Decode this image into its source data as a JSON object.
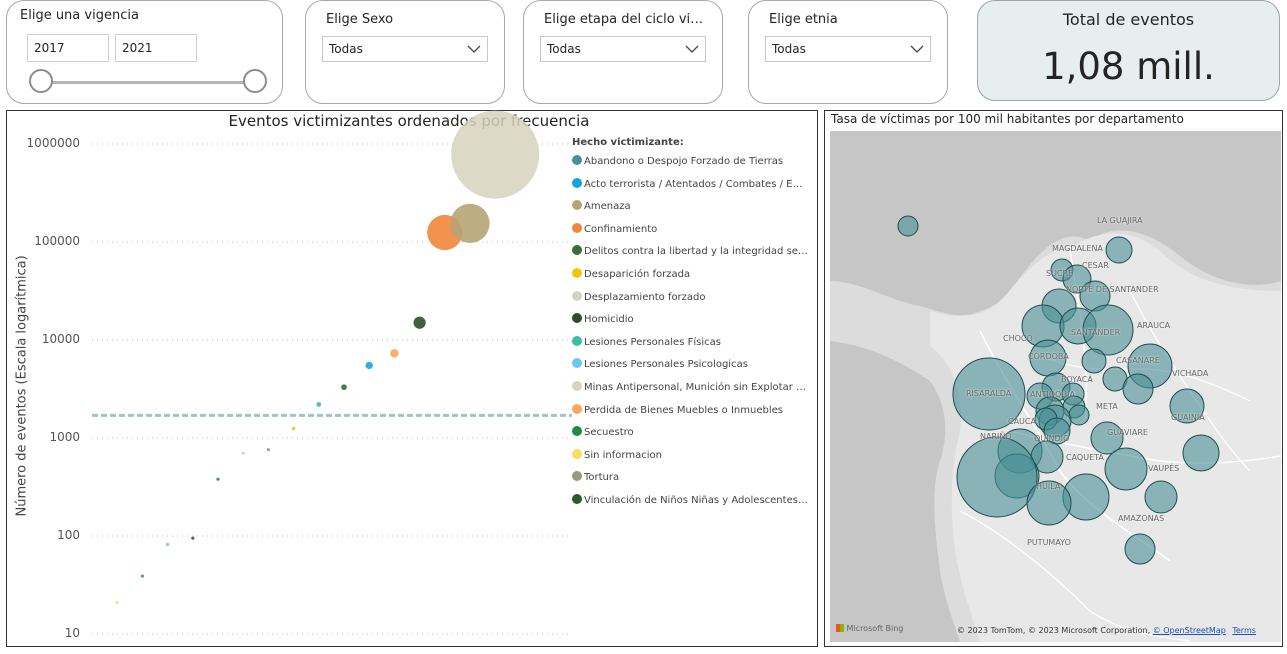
{
  "slicers": {
    "vigencia": {
      "title": "Elige una vigencia",
      "from": "2017",
      "to": "2021"
    },
    "sexo": {
      "title": "Elige Sexo",
      "value": "Todas"
    },
    "etapa": {
      "title": "Elige etapa del ciclo vi…",
      "value": "Todas"
    },
    "etnia": {
      "title": "Elige etnia",
      "value": "Todas"
    }
  },
  "kpi": {
    "title": "Total de eventos",
    "value": "1,08 mill."
  },
  "scatter": {
    "title": "Eventos victimizantes ordenados por frecuencia",
    "ylabel": "Número de eventos (Escala logarítmica)",
    "legend_title": "Hecho victimizante:",
    "yticks": [
      "1000000",
      "100000",
      "10000",
      "1000",
      "100",
      "10"
    ]
  },
  "chart_data": {
    "type": "scatter",
    "title": "Eventos victimizantes ordenados por frecuencia",
    "ylabel": "Número de eventos (Escala logarítmica)",
    "yscale": "log",
    "ylim": [
      10,
      1000000
    ],
    "legend_placement": "right",
    "reference_line": 1700,
    "series": [
      {
        "name": "Abandono o Despojo Forzado de Tierras",
        "color": "#4a8f94",
        "rank": 3,
        "value": 39
      },
      {
        "name": "Acto terrorista / Atentados / Combates / Enfr…",
        "color": "#12a6e0",
        "rank": 12,
        "value": 5500
      },
      {
        "name": "Amenaza",
        "color": "#b6a474",
        "rank": 16,
        "value": 155000
      },
      {
        "name": "Confinamiento",
        "color": "#f0873c",
        "rank": 15,
        "value": 125000
      },
      {
        "name": "Delitos contra la libertad y la integridad sexu…",
        "color": "#3a6e3a",
        "rank": 11,
        "value": 3300
      },
      {
        "name": "Desaparición forzada",
        "color": "#f2c40f",
        "rank": 9,
        "value": 1250
      },
      {
        "name": "Desplazamiento forzado",
        "color": "#d6d3bd",
        "rank": 17,
        "value": 780000
      },
      {
        "name": "Homicidio",
        "color": "#2b4f2b",
        "rank": 14,
        "value": 15000
      },
      {
        "name": "Lesiones Personales Físicas",
        "color": "#3dbea0",
        "rank": 10,
        "value": 2200
      },
      {
        "name": "Lesiones Personales Psicologicas",
        "color": "#6ec8ec",
        "rank": 4,
        "value": 82
      },
      {
        "name": "Minas Antipersonal, Munición sin Explotar y …",
        "color": "#d8d4b8",
        "rank": 7,
        "value": 700
      },
      {
        "name": "Perdida de Bienes Muebles o Inmuebles",
        "color": "#f8a85a",
        "rank": 13,
        "value": 7300
      },
      {
        "name": "Secuestro",
        "color": "#1f8a4c",
        "rank": 6,
        "value": 380
      },
      {
        "name": "Sin informacion",
        "color": "#f8dd60",
        "rank": 2,
        "value": 21
      },
      {
        "name": "Tortura",
        "color": "#989a7a",
        "rank": 8,
        "value": 760
      },
      {
        "name": "Vinculación de Niños Niñas y Adolescentes a…",
        "color": "#2a5c2a",
        "rank": 5,
        "value": 95
      }
    ]
  },
  "map": {
    "title": "Tasa de víctimas por 100 mil habitantes por departamento",
    "labels": [
      "LA GUAJIRA",
      "MAGDALENA",
      "CESAR",
      "SUCRE",
      "NORTE DE SANTANDER",
      "SANTANDER",
      "ARAUCA",
      "CHOCÓ",
      "CÓRDOBA",
      "CASANARE",
      "BOYACÁ",
      "VICHADA",
      "RISARALDA",
      "ANTIOQUIA",
      "META",
      "GUAINÍA",
      "CAUCA",
      "NARIÑO",
      "GUAVIARE",
      "QUINDÍO",
      "CAQUETÁ",
      "VAUPÉS",
      "HUILA",
      "AMAZONAS",
      "PUTUMAYO"
    ],
    "bubble_color": "#4a8f94",
    "attribution": "© 2023 TomTom, © 2023 Microsoft Corporation,",
    "osm": "© OpenStreetMap",
    "terms": "Terms",
    "bing": "Microsoft Bing"
  }
}
